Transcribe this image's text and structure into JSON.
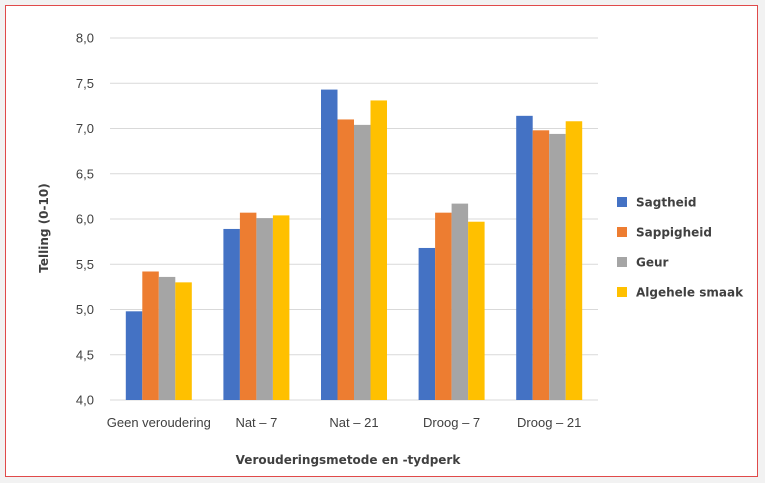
{
  "chart_data": {
    "type": "bar",
    "categories": [
      "Geen veroudering",
      "Nat – 7",
      "Nat – 21",
      "Droog – 7",
      "Droog – 21"
    ],
    "series": [
      {
        "name": "Sagtheid",
        "color": "#4472c4",
        "values": [
          4.98,
          5.89,
          7.43,
          5.68,
          7.14
        ]
      },
      {
        "name": "Sappigheid",
        "color": "#ed7d31",
        "values": [
          5.42,
          6.07,
          7.1,
          6.07,
          6.98
        ]
      },
      {
        "name": "Geur",
        "color": "#a5a5a5",
        "values": [
          5.36,
          6.01,
          7.04,
          6.17,
          6.94
        ]
      },
      {
        "name": "Algehele smaak",
        "color": "#ffc000",
        "values": [
          5.3,
          6.04,
          7.31,
          5.97,
          7.08
        ]
      }
    ],
    "ylim": [
      4.0,
      8.0
    ],
    "yticks": [
      "4,0",
      "4,5",
      "5,0",
      "5,5",
      "6,0",
      "6,5",
      "7,0",
      "7,5",
      "8,0"
    ],
    "xlabel": "Verouderingsmetode en -tydperk",
    "ylabel": "Telling (0-10)",
    "grid": true,
    "legend_position": "right"
  }
}
